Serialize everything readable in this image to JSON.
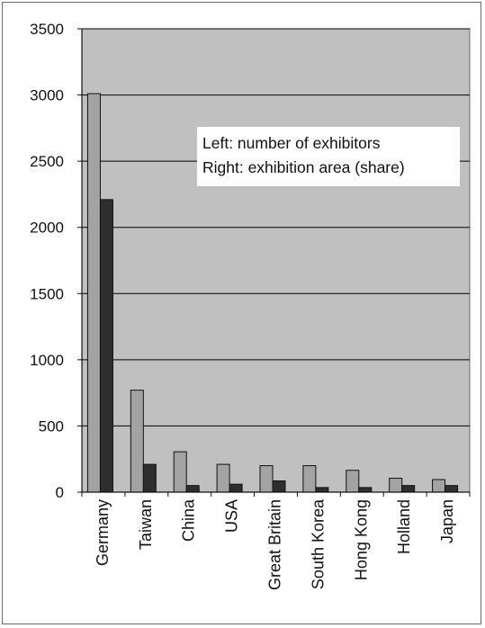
{
  "chart_data": {
    "type": "bar",
    "categories": [
      "Germany",
      "Taiwan",
      "China",
      "USA",
      "Great Britain",
      "South Korea",
      "Hong Kong",
      "Holland",
      "Japan"
    ],
    "series": [
      {
        "values": [
          3010,
          770,
          305,
          210,
          200,
          200,
          165,
          105,
          95
        ]
      },
      {
        "values": [
          2210,
          210,
          50,
          60,
          85,
          35,
          35,
          50,
          50
        ]
      }
    ],
    "ylim": [
      0,
      3500
    ],
    "yticks": [
      "0",
      "500",
      "1000",
      "1500",
      "2000",
      "2500",
      "3000",
      "3500"
    ],
    "annotation": [
      "Left: number of exhibitors",
      "Right: exhibition area (share)"
    ],
    "grid": true,
    "colors": {
      "plot_background": "#c0c0c0",
      "series_1": "#a3a3a3",
      "series_2": "#2e2e2e",
      "gridline": "#000000",
      "frame": "#6b6b6b"
    }
  }
}
